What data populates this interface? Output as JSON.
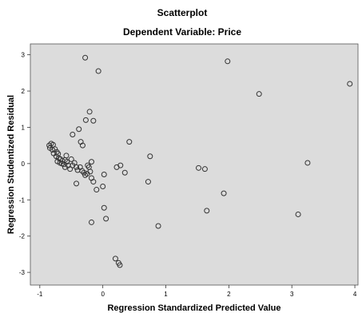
{
  "chart_data": {
    "type": "scatter",
    "title": "Scatterplot",
    "subtitle": "Dependent Variable: Price",
    "xlabel": "Regression Standardized Predicted Value",
    "ylabel": "Regression Studentized Residual",
    "xlim": [
      -1.15,
      4.05
    ],
    "ylim": [
      -3.35,
      3.3
    ],
    "xticks": [
      -1,
      0,
      1,
      2,
      3,
      4
    ],
    "yticks": [
      -3,
      -2,
      -1,
      0,
      1,
      2,
      3
    ],
    "grid": false,
    "colors": {
      "plot_background": "#dcdcdc",
      "marker_stroke": "#333333"
    },
    "points": [
      [
        -0.28,
        2.92
      ],
      [
        -0.07,
        2.55
      ],
      [
        1.98,
        2.82
      ],
      [
        2.48,
        1.92
      ],
      [
        3.92,
        2.2
      ],
      [
        -0.21,
        1.43
      ],
      [
        -0.27,
        1.2
      ],
      [
        -0.15,
        1.18
      ],
      [
        -0.38,
        0.95
      ],
      [
        -0.48,
        0.8
      ],
      [
        -0.35,
        0.6
      ],
      [
        -0.32,
        0.5
      ],
      [
        0.42,
        0.6
      ],
      [
        0.75,
        0.2
      ],
      [
        3.25,
        0.02
      ],
      [
        -0.85,
        0.5
      ],
      [
        -0.82,
        0.55
      ],
      [
        -0.79,
        0.52
      ],
      [
        -0.84,
        0.43
      ],
      [
        -0.8,
        0.38
      ],
      [
        -0.76,
        0.4
      ],
      [
        -0.73,
        0.32
      ],
      [
        -0.71,
        0.27
      ],
      [
        -0.78,
        0.28
      ],
      [
        -0.74,
        0.2
      ],
      [
        -0.7,
        0.15
      ],
      [
        -0.67,
        0.12
      ],
      [
        -0.72,
        0.06
      ],
      [
        -0.68,
        0.02
      ],
      [
        -0.65,
        0.0
      ],
      [
        -0.62,
        -0.02
      ],
      [
        -0.64,
        0.07
      ],
      [
        -0.6,
        0.1
      ],
      [
        -0.57,
        0.05
      ],
      [
        -0.55,
        -0.05
      ],
      [
        -0.6,
        -0.1
      ],
      [
        -0.52,
        -0.15
      ],
      [
        -0.48,
        -0.05
      ],
      [
        -0.45,
        0.02
      ],
      [
        -0.42,
        -0.1
      ],
      [
        -0.4,
        -0.18
      ],
      [
        -0.36,
        -0.1
      ],
      [
        -0.33,
        -0.2
      ],
      [
        -0.3,
        -0.25
      ],
      [
        -0.28,
        -0.32
      ],
      [
        -0.25,
        -0.28
      ],
      [
        -0.22,
        -0.1
      ],
      [
        -0.2,
        -0.22
      ],
      [
        -0.18,
        -0.4
      ],
      [
        -0.15,
        -0.5
      ],
      [
        -0.24,
        -0.05
      ],
      [
        -0.18,
        0.05
      ],
      [
        -0.42,
        -0.55
      ],
      [
        -0.5,
        0.12
      ],
      [
        -0.58,
        0.22
      ],
      [
        -0.1,
        -0.72
      ],
      [
        0.0,
        -0.63
      ],
      [
        0.02,
        -0.3
      ],
      [
        0.22,
        -0.1
      ],
      [
        0.28,
        -0.05
      ],
      [
        0.35,
        -0.25
      ],
      [
        0.72,
        -0.5
      ],
      [
        1.52,
        -0.12
      ],
      [
        1.62,
        -0.15
      ],
      [
        1.92,
        -0.82
      ],
      [
        0.02,
        -1.22
      ],
      [
        0.05,
        -1.52
      ],
      [
        -0.18,
        -1.62
      ],
      [
        0.88,
        -1.72
      ],
      [
        1.65,
        -1.3
      ],
      [
        3.1,
        -1.4
      ],
      [
        0.2,
        -2.62
      ],
      [
        0.25,
        -2.74
      ],
      [
        0.27,
        -2.8
      ]
    ]
  }
}
